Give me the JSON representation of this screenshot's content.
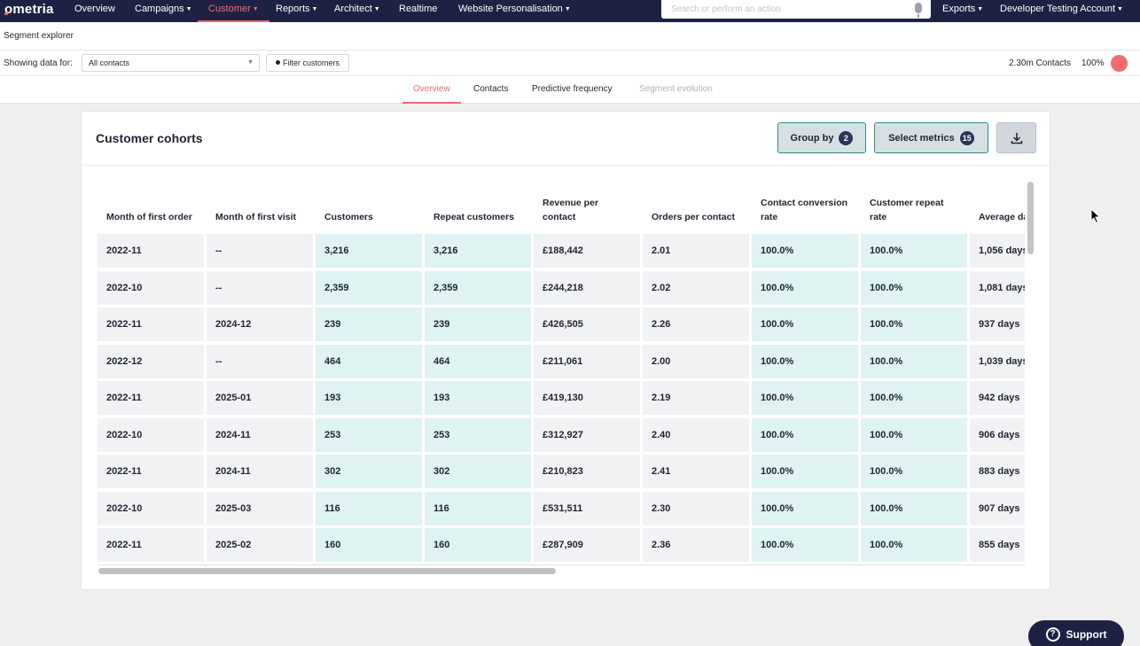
{
  "topnav": {
    "logo": "ometria",
    "items": [
      {
        "label": "Overview",
        "dropdown": false
      },
      {
        "label": "Campaigns",
        "dropdown": true
      },
      {
        "label": "Customer",
        "dropdown": true,
        "active": true
      },
      {
        "label": "Reports",
        "dropdown": true
      },
      {
        "label": "Architect",
        "dropdown": true
      },
      {
        "label": "Realtime",
        "dropdown": false
      },
      {
        "label": "Website Personalisation",
        "dropdown": true
      }
    ],
    "search_placeholder": "Search or perform an action",
    "exports_label": "Exports",
    "account_label": "Developer Testing Account"
  },
  "page": {
    "title": "Segment explorer",
    "showing_label": "Showing data for:",
    "segment_select": "All contacts",
    "filter_button": "Filter customers",
    "contacts_count": "2.30m Contacts",
    "contacts_pct": "100%"
  },
  "tabs": [
    {
      "label": "Overview",
      "state": "active"
    },
    {
      "label": "Contacts",
      "state": "normal"
    },
    {
      "label": "Predictive frequency",
      "state": "normal"
    },
    {
      "label": "Segment evolution",
      "state": "disabled"
    }
  ],
  "card": {
    "title": "Customer cohorts",
    "group_by_label": "Group by",
    "group_by_count": "2",
    "select_metrics_label": "Select metrics",
    "select_metrics_count": "15"
  },
  "table": {
    "columns": [
      "Month of first order",
      "Month of first visit",
      "Customers",
      "Repeat customers",
      "Revenue per contact",
      "Orders per contact",
      "Contact conversion rate",
      "Customer repeat rate",
      "Average days"
    ],
    "highlight_columns": [
      2,
      3,
      6,
      7
    ],
    "rows": [
      [
        "2022-11",
        "--",
        "3,216",
        "3,216",
        "£188,442",
        "2.01",
        "100.0%",
        "100.0%",
        "1,056 days"
      ],
      [
        "2022-10",
        "--",
        "2,359",
        "2,359",
        "£244,218",
        "2.02",
        "100.0%",
        "100.0%",
        "1,081 days"
      ],
      [
        "2022-11",
        "2024-12",
        "239",
        "239",
        "£426,505",
        "2.26",
        "100.0%",
        "100.0%",
        "937 days"
      ],
      [
        "2022-12",
        "--",
        "464",
        "464",
        "£211,061",
        "2.00",
        "100.0%",
        "100.0%",
        "1,039 days"
      ],
      [
        "2022-11",
        "2025-01",
        "193",
        "193",
        "£419,130",
        "2.19",
        "100.0%",
        "100.0%",
        "942 days"
      ],
      [
        "2022-10",
        "2024-11",
        "253",
        "253",
        "£312,927",
        "2.40",
        "100.0%",
        "100.0%",
        "906 days"
      ],
      [
        "2022-11",
        "2024-11",
        "302",
        "302",
        "£210,823",
        "2.41",
        "100.0%",
        "100.0%",
        "883 days"
      ],
      [
        "2022-10",
        "2025-03",
        "116",
        "116",
        "£531,511",
        "2.30",
        "100.0%",
        "100.0%",
        "907 days"
      ],
      [
        "2022-11",
        "2025-02",
        "160",
        "160",
        "£287,909",
        "2.36",
        "100.0%",
        "100.0%",
        "855 days"
      ]
    ]
  },
  "support_label": "Support",
  "colors": {
    "nav_bg": "#1d2244",
    "accent": "#f26b6b",
    "highlight_cell": "#dff3f2",
    "button_border": "#2c8b86"
  }
}
